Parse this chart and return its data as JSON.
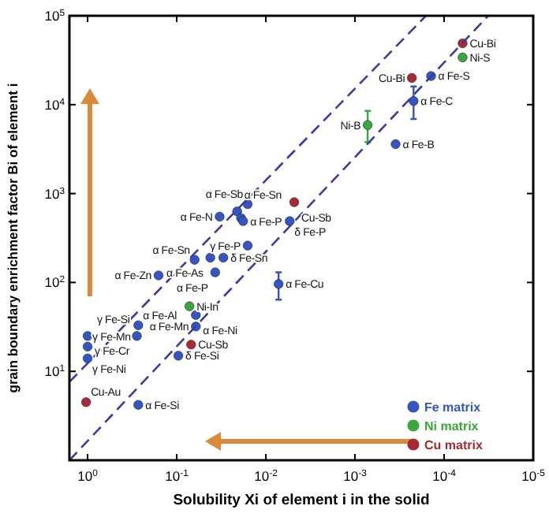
{
  "chart_data": {
    "type": "scatter",
    "xlabel": "Solubility Xi of element i in the solid",
    "ylabel": "grain boundary enrichment factor Bi of element i",
    "log": "xy",
    "grid": false,
    "legend": "bottom right",
    "marker": "circle",
    "xlim": [
      1.6,
      1e-05
    ],
    "xticks": [
      {
        "value": 1,
        "label": "10$^{0}$"
      },
      {
        "value": 0.1,
        "label": "10$^{-1}$"
      },
      {
        "value": 0.01,
        "label": "10$^{-2}$"
      },
      {
        "value": 0.001,
        "label": "10$^{-3}$"
      },
      {
        "value": 0.0001,
        "label": "10$^{-4}$"
      },
      {
        "value": 1e-05,
        "label": "10$^{-5}$"
      }
    ],
    "ylim": [
      1,
      100000
    ],
    "yticks": [
      {
        "value": 10,
        "label": "10$^{1}$"
      },
      {
        "value": 100,
        "label": "10$^{2}$"
      },
      {
        "value": 1000,
        "label": "10$^{3}$"
      },
      {
        "value": 10000,
        "label": "10$^{4}$"
      },
      {
        "value": 100000,
        "label": "10$^{5}$"
      }
    ],
    "series": [
      {
        "name": "Fe matrix",
        "color": "#3556c0",
        "x": [
          0.016,
          0.033,
          0.021,
          0.019,
          0.018,
          0.0054,
          0.016,
          0.063,
          0.042,
          0.03,
          0.16,
          0.037,
          0.0072,
          0.061,
          0.061,
          0.096,
          0.27,
          0.28,
          1,
          1,
          1,
          0.27,
          0.00014,
          0.00022,
          0.00035
        ],
        "values": [
          760,
          550,
          630,
          530,
          490,
          490,
          260,
          180,
          190,
          190,
          120,
          130,
          96,
          43,
          32,
          15,
          33,
          25,
          25,
          19,
          14,
          4.2,
          21000,
          11000,
          3600
        ],
        "errors": [
          null,
          null,
          null,
          null,
          null,
          null,
          null,
          null,
          null,
          null,
          null,
          null,
          [
            64,
            130
          ],
          null,
          null,
          null,
          null,
          null,
          null,
          null,
          null,
          null,
          null,
          [
            6900,
            16000
          ],
          null
        ]
      },
      {
        "name": "Ni matrix",
        "color": "#3aa83a",
        "x": [
          0.072,
          6.2e-05,
          0.00072
        ],
        "values": [
          54,
          34000,
          5900
        ],
        "errors": [
          null,
          null,
          [
            3800,
            8500
          ]
        ]
      },
      {
        "name": "Cu matrix",
        "color": "#a82a35",
        "x": [
          0.0048,
          0.069,
          1.04,
          0.00023,
          6.2e-05
        ],
        "values": [
          800,
          20,
          4.5,
          20000,
          49000
        ]
      },
      {
        "type": "line",
        "color": "#3a3aaa",
        "line_style": "dashed",
        "marker": "none",
        "x": [
          1.6,
          0.00016
        ],
        "values": [
          7.6,
          100000
        ]
      },
      {
        "type": "line",
        "color": "#3a3aaa",
        "line_style": "dashed",
        "marker": "none",
        "x": [
          1.6,
          3.2e-05
        ],
        "values": [
          1,
          100000
        ]
      }
    ],
    "annotations": [
      {
        "text": "α Fe-Sb",
        "x": 0.016,
        "y": 760
      },
      {
        "text": "α Fe-N",
        "x": 0.033,
        "y": 550
      },
      {
        "text": "α Fe-Sn",
        "x": 0.021,
        "y": 630
      },
      {
        "text": "α Fe-P",
        "x": 0.018,
        "y": 490
      },
      {
        "text": "δ Fe-P",
        "x": 0.0054,
        "y": 490
      },
      {
        "text": "γ Fe-P",
        "x": 0.016,
        "y": 260
      },
      {
        "text": "α Fe-Sn",
        "x": 0.063,
        "y": 180
      },
      {
        "text": "α Fe-As",
        "x": 0.042,
        "y": 190
      },
      {
        "text": "δ Fe-Sn",
        "x": 0.03,
        "y": 190
      },
      {
        "text": "α Fe-Zn",
        "x": 0.16,
        "y": 120
      },
      {
        "text": "α Fe-P",
        "x": 0.037,
        "y": 130
      },
      {
        "text": "α Fe-Cu",
        "x": 0.0072,
        "y": 96
      },
      {
        "text": "α Fe-Ni",
        "x": 0.061,
        "y": 43
      },
      {
        "text": "α Fe-Mn",
        "x": 0.061,
        "y": 32
      },
      {
        "text": "δ Fe-Si",
        "x": 0.096,
        "y": 15
      },
      {
        "text": "α Fe-Al",
        "x": 0.27,
        "y": 33
      },
      {
        "text": "γ Fe-Si",
        "x": 0.28,
        "y": 25
      },
      {
        "text": "γ Fe-Cr",
        "x": 1,
        "y": 25
      },
      {
        "text": "γ Fe-Mn",
        "x": 1,
        "y": 19
      },
      {
        "text": "γ Fe-Ni",
        "x": 1,
        "y": 14
      },
      {
        "text": "α Fe-Si",
        "x": 0.27,
        "y": 4.2
      },
      {
        "text": "α Fe-S",
        "x": 0.00014,
        "y": 21000
      },
      {
        "text": "α Fe-C",
        "x": 0.00022,
        "y": 11000
      },
      {
        "text": "α Fe-B",
        "x": 0.00035,
        "y": 3600
      },
      {
        "text": "Ni-In",
        "x": 0.072,
        "y": 54
      },
      {
        "text": "Ni-S",
        "x": 6.2e-05,
        "y": 34000
      },
      {
        "text": "Ni-B",
        "x": 0.00072,
        "y": 5900
      },
      {
        "text": "Cu-Sb",
        "x": 0.0048,
        "y": 800
      },
      {
        "text": "Cu-Sb",
        "x": 0.069,
        "y": 20
      },
      {
        "text": "Cu-Au",
        "x": 1.04,
        "y": 4.5
      },
      {
        "text": "Cu-Bi",
        "x": 0.00023,
        "y": 20000
      },
      {
        "text": "Cu-Bi",
        "x": 6.2e-05,
        "y": 49000
      }
    ]
  }
}
